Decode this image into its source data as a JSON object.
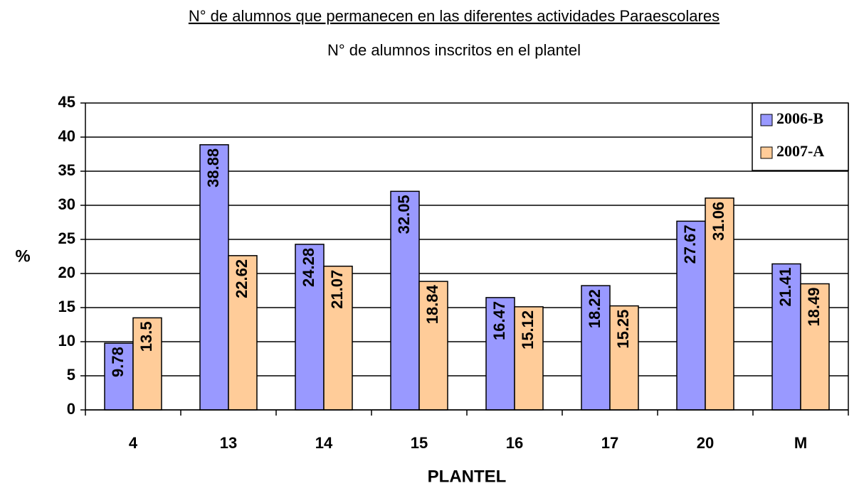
{
  "chart_data": {
    "type": "bar",
    "title": "N° de alumnos que permanecen en las diferentes actividades Paraescolares",
    "subtitle": "N° de alumnos inscritos en el plantel",
    "x_label": "PLANTEL",
    "y_label": "%",
    "categories": [
      "4",
      "13",
      "14",
      "15",
      "16",
      "17",
      "20",
      "M"
    ],
    "series": [
      {
        "name": "2006-B",
        "color": "#9999ff",
        "values": [
          9.78,
          38.88,
          24.28,
          32.05,
          16.47,
          18.22,
          27.67,
          21.41
        ]
      },
      {
        "name": "2007-A",
        "color": "#ffcc99",
        "values": [
          13.5,
          22.62,
          21.07,
          18.84,
          15.12,
          15.25,
          31.06,
          18.49
        ]
      }
    ],
    "ylim": [
      0,
      45
    ],
    "yticks": [
      0,
      5,
      10,
      15,
      20,
      25,
      30,
      35,
      40,
      45
    ],
    "grid": true,
    "legend": "top-right"
  }
}
